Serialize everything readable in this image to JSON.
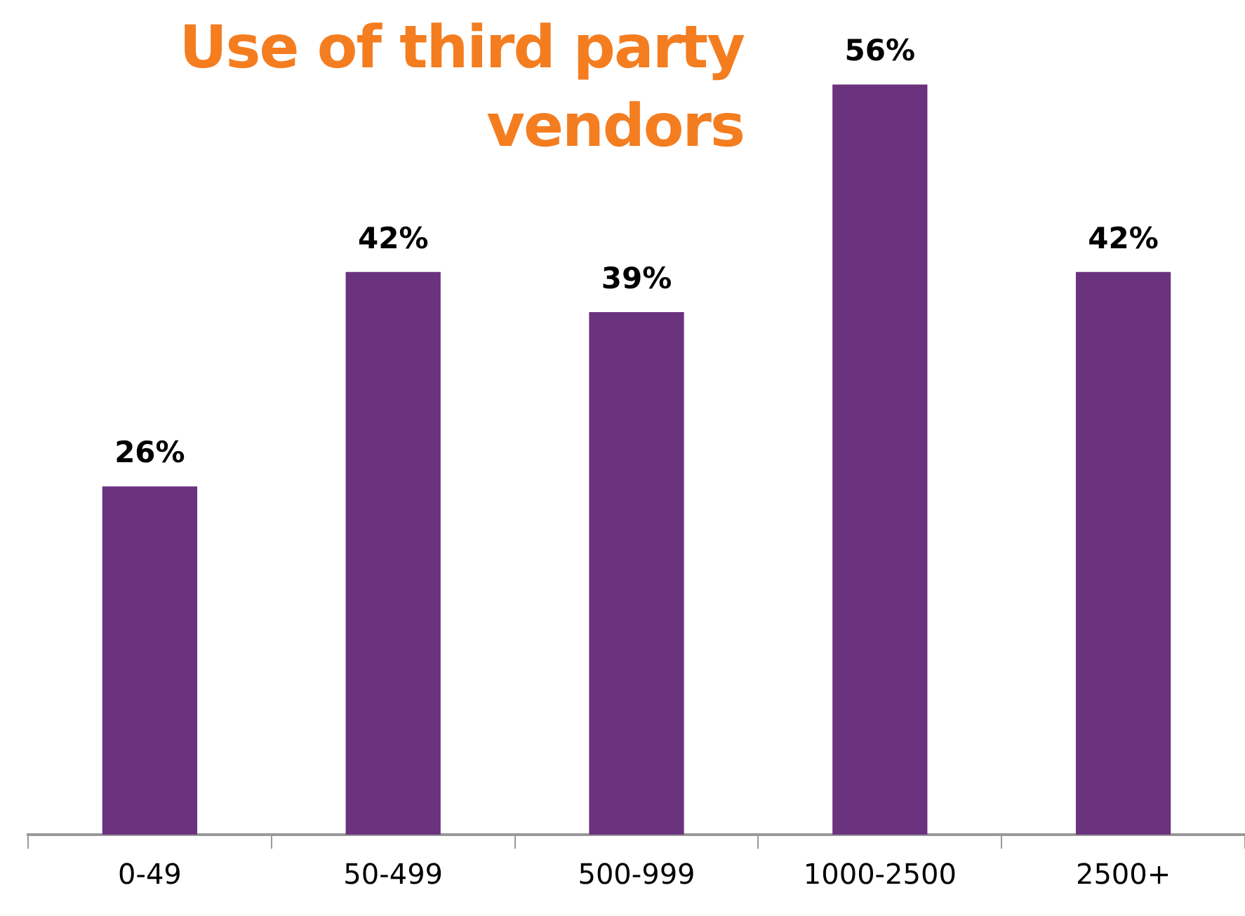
{
  "chart_data": {
    "type": "bar",
    "title": "Use of third party vendors",
    "categories": [
      "0-49",
      "50-499",
      "500-999",
      "1000-2500",
      "2500+"
    ],
    "values": [
      26,
      42,
      39,
      56,
      42
    ],
    "color": "#6b327e",
    "value_labels": [
      "26%",
      "42%",
      "39%",
      "56%",
      "42%"
    ],
    "grid": false,
    "legend": false
  }
}
